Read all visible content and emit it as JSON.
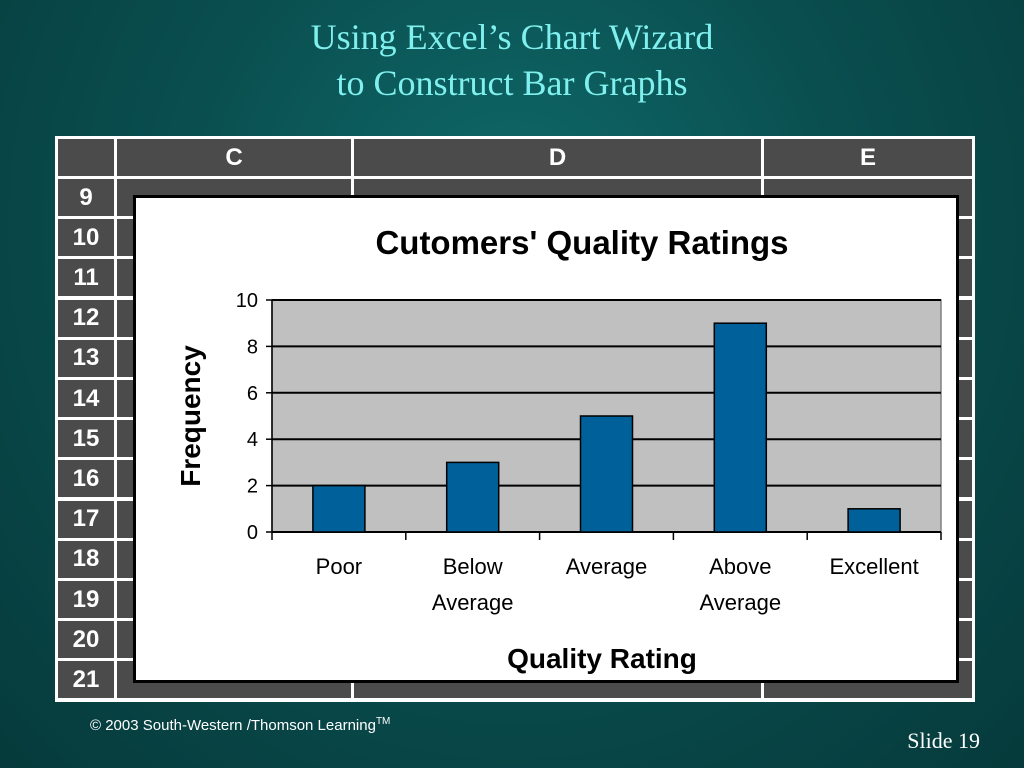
{
  "slide": {
    "title_line1": "Using Excel’s Chart Wizard",
    "title_line2": "to Construct Bar Graphs",
    "footer_copyright": "© 2003  South-Western /Thomson Learning",
    "footer_tm": "TM",
    "slide_label": "Slide",
    "slide_number": "19"
  },
  "spreadsheet": {
    "columns": [
      "C",
      "D",
      "E"
    ],
    "rows": [
      "9",
      "10",
      "11",
      "12",
      "13",
      "14",
      "15",
      "16",
      "17",
      "18",
      "19",
      "20",
      "21"
    ]
  },
  "chart_data": {
    "type": "bar",
    "title": "Cutomers' Quality Ratings",
    "xlabel": "Quality Rating",
    "ylabel": "Frequency",
    "categories": [
      [
        "Poor"
      ],
      [
        "Below",
        "Average"
      ],
      [
        "Average"
      ],
      [
        "Above",
        "Average"
      ],
      [
        "Excellent"
      ]
    ],
    "values": [
      2,
      3,
      5,
      9,
      1
    ],
    "ylim": [
      0,
      10
    ],
    "yticks": [
      0,
      2,
      4,
      6,
      8,
      10
    ],
    "grid": true,
    "bar_color": "#00609a",
    "plot_bg": "#c0c0c0"
  }
}
